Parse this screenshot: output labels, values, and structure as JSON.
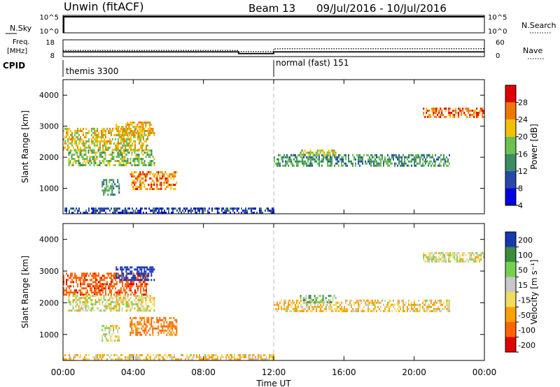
{
  "header": {
    "station": "Unwin (fitACF)",
    "beam": "Beam 13",
    "dates": "09/Jul/2016 - 10/Jul/2016"
  },
  "strips": {
    "nsky": {
      "label": "N.Sky",
      "ticks_left": [
        "10^5",
        "10^0"
      ],
      "ticks_right": [
        "10^5",
        "10^0"
      ],
      "right_label": "N.Search"
    },
    "freq": {
      "label_line1": "Freq.",
      "label_line2": "[MHz]",
      "ticks_left": [
        "18",
        "8"
      ],
      "ticks_right": [
        "60",
        "0"
      ],
      "right_label": "Nave",
      "freq_step": [
        {
          "t0": 0,
          "t1": 10,
          "mhz": 10.8
        },
        {
          "t0": 10,
          "t1": 12,
          "mhz": 9.8
        },
        {
          "t0": 12,
          "t1": 24,
          "mhz": 10.8
        }
      ],
      "nave_step": [
        {
          "t0": 0,
          "t1": 10,
          "nave": 22
        },
        {
          "t0": 10,
          "t1": 12,
          "nave": 18
        },
        {
          "t0": 12,
          "t1": 24,
          "nave": 28
        }
      ]
    },
    "cpid": {
      "label": "CPID",
      "mode1": "themis 3300",
      "mode2": "normal (fast) 151"
    }
  },
  "panels": {
    "power": {
      "ylabel": "Slant Range [km]",
      "cbar_label": "Power [dB]",
      "cbar_ticks": [
        "28",
        "24",
        "20",
        "16",
        "12",
        "8",
        "4"
      ]
    },
    "velocity": {
      "ylabel": "Slant Range [km]",
      "cbar_label": "Velocity [m s⁻¹]",
      "cbar_ticks": [
        "200",
        "100",
        "50",
        "15",
        "-15",
        "-50",
        "-100",
        "-200"
      ]
    }
  },
  "x_axis": {
    "ticks": [
      "00:00",
      "04:00",
      "08:00",
      "12:00",
      "16:00",
      "20:00",
      "00:00"
    ],
    "label": "Time UT"
  },
  "chart_data": {
    "type": "heatmap",
    "xlim_hours": [
      0,
      24
    ],
    "ylim_km": [
      180,
      4500
    ],
    "y_ticks_km": [
      1000,
      2000,
      3000,
      4000
    ],
    "power_scale": {
      "colors": [
        "#0000e0",
        "#2848a8",
        "#3c8c64",
        "#6cc050",
        "#f2c000",
        "#f07800",
        "#e00000"
      ],
      "range_db": [
        0,
        32
      ]
    },
    "velocity_scale": {
      "colors": [
        "#e00000",
        "#ff6400",
        "#ffa000",
        "#f0dc60",
        "#c8c8c8",
        "#78d050",
        "#3c8c40",
        "#1838b0"
      ],
      "range_ms": [
        -250,
        250
      ]
    },
    "echo_regions": [
      {
        "t0": 0.0,
        "t1": 4.8,
        "r0": 2250,
        "r1": 2950,
        "db": 20,
        "vel": -160
      },
      {
        "t0": 0.3,
        "t1": 5.2,
        "r0": 1750,
        "r1": 2250,
        "db": 16,
        "vel": -10
      },
      {
        "t0": 3.0,
        "t1": 5.2,
        "r0": 2700,
        "r1": 3150,
        "db": 22,
        "vel": 200
      },
      {
        "t0": 3.8,
        "t1": 6.5,
        "r0": 1000,
        "r1": 1550,
        "db": 24,
        "vel": -130
      },
      {
        "t0": 2.2,
        "t1": 3.2,
        "r0": 800,
        "r1": 1300,
        "db": 12,
        "vel": -10
      },
      {
        "t0": 0.0,
        "t1": 12.0,
        "r0": 190,
        "r1": 380,
        "db": 6,
        "vel": -40
      },
      {
        "t0": 12.0,
        "t1": 22.0,
        "r0": 1750,
        "r1": 2100,
        "db": 12,
        "vel": -40
      },
      {
        "t0": 13.5,
        "t1": 15.5,
        "r0": 2050,
        "r1": 2250,
        "db": 18,
        "vel": 40
      },
      {
        "t0": 20.5,
        "t1": 24.0,
        "r0": 3300,
        "r1": 3600,
        "db": 26,
        "vel": -10
      }
    ]
  }
}
